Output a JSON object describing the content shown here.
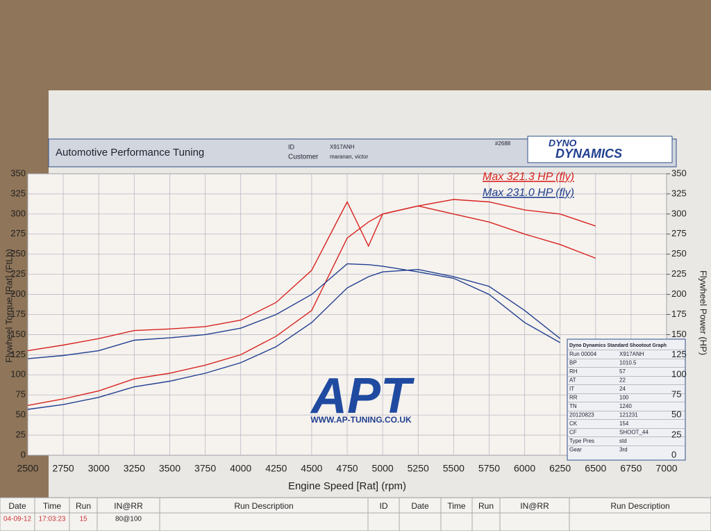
{
  "header": {
    "company": "Automotive Performance Tuning",
    "id_label": "ID",
    "id_value": "X917ANH",
    "customer_label": "Customer",
    "customer_value": "maranan, victor",
    "sheet": "#2688",
    "logo_top": "DYNO",
    "logo_bottom": "DYNAMICS"
  },
  "watermark": {
    "logo": "APT",
    "url": "WWW.AP-TUNING.CO.UK"
  },
  "info_table": {
    "title": "Dyno Dynamics Standard Shootout Graph",
    "rows": [
      [
        "Run 00004",
        "X917ANH"
      ],
      [
        "BP",
        "1010.5"
      ],
      [
        "RH",
        "57"
      ],
      [
        "AT",
        "22"
      ],
      [
        "IT",
        "24"
      ],
      [
        "RR",
        "100"
      ],
      [
        "TN",
        "1240"
      ],
      [
        "20120823",
        "121231"
      ],
      [
        "CK",
        "154"
      ],
      [
        "CF",
        "SHOOT_44"
      ],
      [
        "Type Pres",
        "std"
      ],
      [
        "Gear",
        "3rd"
      ]
    ]
  },
  "run_table": {
    "headers": [
      "Date",
      "Time",
      "Run",
      "IN@RR",
      "Run Description",
      "ID",
      "Date",
      "Time",
      "Run",
      "IN@RR",
      "Run Description"
    ],
    "rows": [
      [
        "04-09-12",
        "17:03:23",
        "15",
        "80@100"
      ]
    ]
  },
  "chart_data": {
    "type": "line",
    "x_label": "Engine Speed [Rat] (rpm)",
    "y_label": "Flywheel Torque [Rat] (FtLb)",
    "y2_label": "Flywheel Power (HP)",
    "x": [
      2500,
      2750,
      3000,
      3250,
      3500,
      3750,
      4000,
      4250,
      4500,
      4750,
      4900,
      5000,
      5250,
      5500,
      5750,
      6000,
      6250,
      6500
    ],
    "series": [
      {
        "name": "Max 321.3 HP (fly)",
        "color": "#d8231f",
        "axis": "y2",
        "values": [
          62,
          70,
          80,
          95,
          102,
          112,
          125,
          148,
          180,
          270,
          290,
          300,
          310,
          318,
          315,
          305,
          300,
          285
        ]
      },
      {
        "color": "#d8231f",
        "values": [
          130,
          137,
          145,
          155,
          157,
          160,
          168,
          190,
          230,
          315,
          260,
          300,
          310,
          300,
          290,
          275,
          262,
          245
        ]
      },
      {
        "name": "Max 231.0 HP (fly)",
        "color": "#1f3f8f",
        "axis": "y2",
        "values": [
          57,
          63,
          72,
          85,
          92,
          102,
          115,
          135,
          165,
          208,
          222,
          228,
          231,
          222,
          210,
          180,
          145,
          null
        ]
      },
      {
        "color": "#1f3f8f",
        "values": [
          120,
          124,
          130,
          143,
          146,
          150,
          158,
          175,
          200,
          238,
          237,
          235,
          228,
          220,
          200,
          165,
          140,
          null
        ]
      }
    ],
    "xlim": [
      2500,
      7000
    ],
    "xticks": [
      2500,
      2750,
      3000,
      3250,
      3500,
      3750,
      4000,
      4250,
      4500,
      4750,
      5000,
      5250,
      5500,
      5750,
      6000,
      6250,
      6500,
      6750,
      7000
    ],
    "ylim": [
      0,
      350
    ],
    "yticks": [
      0,
      25,
      50,
      75,
      100,
      125,
      150,
      175,
      200,
      225,
      250,
      275,
      300,
      325,
      350
    ],
    "y2lim": [
      0,
      350
    ],
    "y2ticks": [
      0,
      25,
      50,
      75,
      100,
      125,
      150,
      175,
      200,
      225,
      250,
      275,
      300,
      325,
      350
    ],
    "grid": true
  }
}
